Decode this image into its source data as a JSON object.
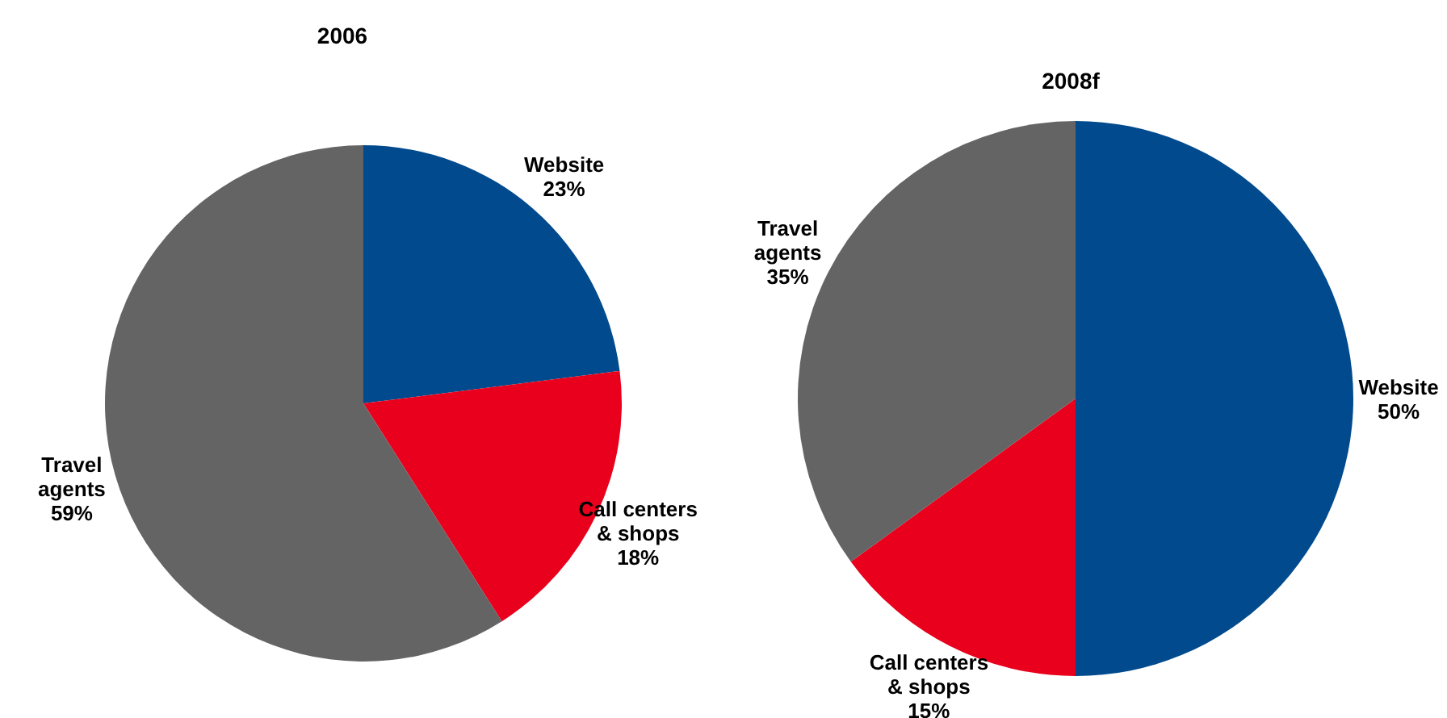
{
  "chart_data": [
    {
      "type": "pie",
      "title": "2006",
      "categories": [
        "Website",
        "Call centers & shops",
        "Travel agents"
      ],
      "values": [
        23,
        18,
        59
      ],
      "value_labels": [
        "23%",
        "18%",
        "59%"
      ],
      "colors": [
        "#004a8d",
        "#e8001c",
        "#646464"
      ],
      "legend": false
    },
    {
      "type": "pie",
      "title": "2008f",
      "categories": [
        "Website",
        "Call centers & shops",
        "Travel agents"
      ],
      "values": [
        50,
        15,
        35
      ],
      "value_labels": [
        "50%",
        "15%",
        "35%"
      ],
      "colors": [
        "#004a8d",
        "#e8001c",
        "#646464"
      ],
      "legend": false
    }
  ]
}
